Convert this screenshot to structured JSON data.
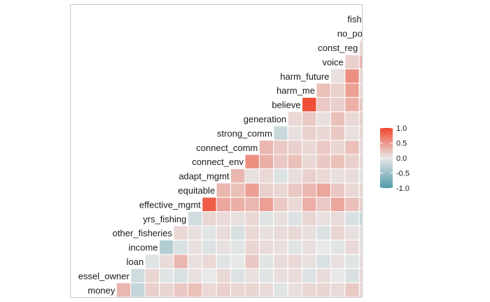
{
  "chart_data": {
    "type": "heatmap",
    "variables": [
      "money",
      "vessel_owner",
      "loan",
      "income",
      "other_fisheries",
      "yrs_fishing",
      "effective_mgmt",
      "equitable",
      "adapt_mgmt",
      "connect_env",
      "connect_comm",
      "strong_comm",
      "generation",
      "believe",
      "harm_me",
      "harm_future",
      "voice",
      "const_reg",
      "no_point",
      "fishery_div"
    ],
    "row_labels": [
      "money",
      "essel_owner",
      "loan",
      "income",
      "other_fisheries",
      "yrs_fishing",
      "effective_mgmt",
      "equitable",
      "adapt_mgmt",
      "connect_env",
      "connect_comm",
      "strong_comm",
      "generation",
      "believe",
      "harm_me",
      "harm_future",
      "voice",
      "const_reg",
      "no_point",
      "fishery_di"
    ],
    "triangle": "lower",
    "values": [
      [
        0.3,
        -0.25,
        0.15,
        0.12,
        0.2,
        0.25,
        0.1,
        0.15,
        0.1,
        0.12,
        0.08,
        -0.05,
        0.05,
        0.1,
        0.12,
        0.08,
        0.2,
        0.1,
        0.06
      ],
      [
        -0.15,
        0.12,
        -0.05,
        -0.1,
        0.05,
        0.0,
        0.1,
        -0.08,
        0.05,
        -0.05,
        0.06,
        0.08,
        -0.08,
        0.08,
        0.0,
        -0.1,
        0.1,
        0.06
      ],
      [
        -0.05,
        0.08,
        0.3,
        0.05,
        0.1,
        -0.05,
        0.0,
        0.2,
        -0.05,
        0.08,
        0.1,
        0.05,
        -0.1,
        0.05,
        -0.05,
        0.08,
        0.05
      ],
      [
        -0.35,
        -0.1,
        0.05,
        -0.08,
        0.05,
        -0.05,
        0.12,
        0.08,
        0.05,
        -0.05,
        0.06,
        0.0,
        -0.05,
        0.1,
        0.05,
        -0.1
      ],
      [
        0.1,
        0.05,
        -0.05,
        0.08,
        -0.1,
        0.1,
        0.05,
        0.08,
        0.1,
        0.05,
        -0.08,
        0.12,
        0.05,
        -0.05,
        0.1
      ],
      [
        -0.15,
        0.12,
        0.08,
        0.05,
        0.1,
        -0.05,
        0.05,
        -0.08,
        0.12,
        0.05,
        0.08,
        -0.1,
        -0.2,
        0.05
      ],
      [
        0.85,
        0.4,
        0.35,
        0.3,
        0.45,
        0.2,
        0.1,
        0.35,
        0.2,
        0.4,
        0.25,
        0.15,
        0.1
      ],
      [
        0.3,
        0.25,
        0.45,
        0.15,
        0.1,
        0.2,
        0.3,
        0.4,
        0.2,
        0.1,
        0.12
      ],
      [
        0.3,
        0.05,
        0.1,
        -0.08,
        0.06,
        0.15,
        0.1,
        0.05,
        0.08,
        -0.05,
        0.1
      ],
      [
        0.55,
        0.35,
        0.2,
        0.25,
        0.1,
        0.2,
        0.25,
        0.15,
        0.1,
        0.05
      ],
      [
        0.3,
        0.2,
        0.15,
        0.1,
        0.2,
        0.12,
        0.25,
        0.08,
        -0.05
      ],
      [
        -0.2,
        0.05,
        0.15,
        0.1,
        0.2,
        0.05,
        0.12,
        0.05
      ],
      [
        0.1,
        0.2,
        0.05,
        0.25,
        0.1,
        0.15,
        0.08
      ],
      [
        0.95,
        0.2,
        0.15,
        0.35,
        0.2,
        0.1
      ],
      [
        0.25,
        0.15,
        0.45,
        0.1,
        0.08
      ],
      [
        0.05,
        0.55,
        0.1,
        0.05
      ],
      [
        0.15,
        0.3,
        0.05
      ],
      [
        0.1,
        0.15
      ],
      [
        0.05
      ]
    ],
    "legend": {
      "ticks": [
        "1.0",
        "0.5",
        "0.0",
        "-0.5",
        "-1.0"
      ],
      "range": [
        -1,
        1
      ]
    },
    "colors": {
      "low": "#4f9aa8",
      "mid": "#e8e8e8",
      "high": "#f0462d",
      "border": "#c9c9c9",
      "cell_line": "#ffffff"
    }
  }
}
